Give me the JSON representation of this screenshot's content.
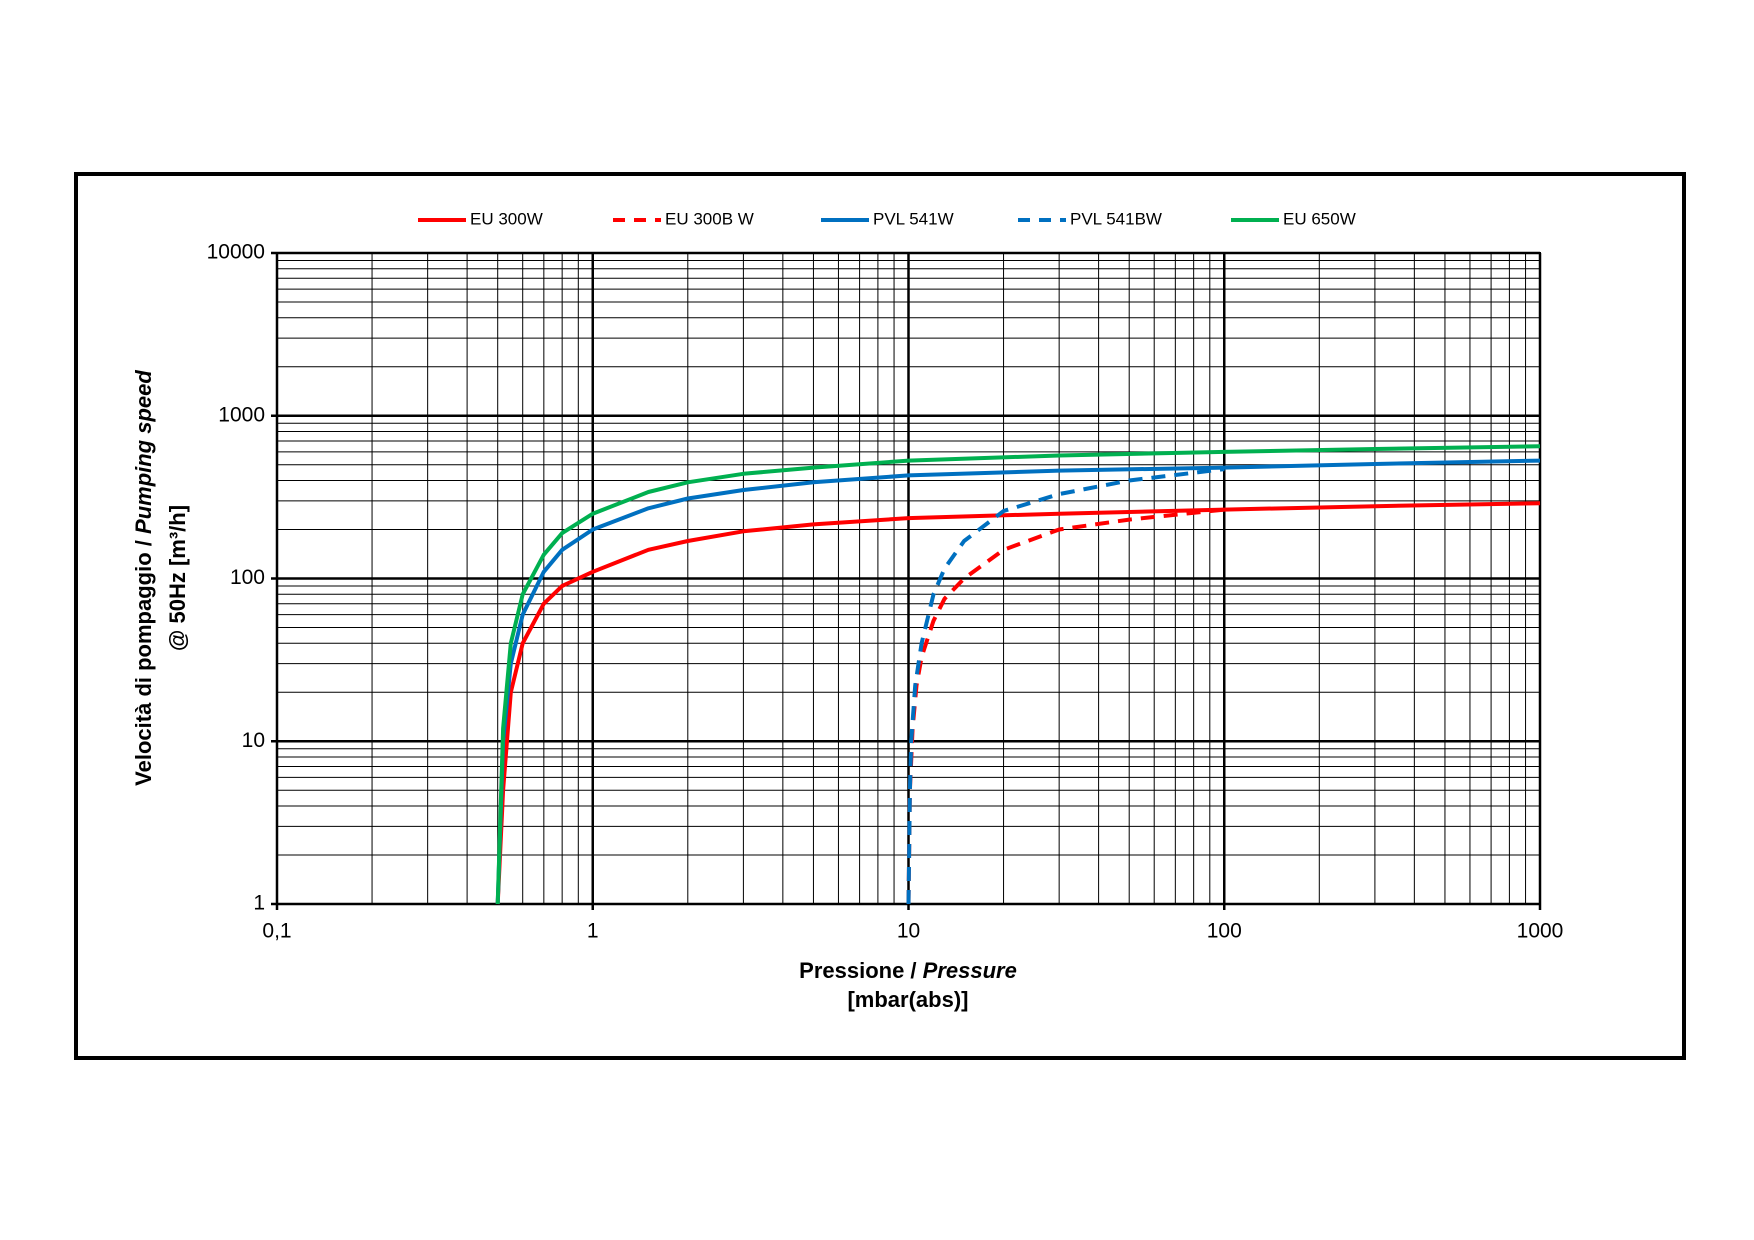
{
  "chart_data": {
    "type": "line",
    "xlabel": {
      "text": "Pressione /",
      "italic": "Pressure",
      "unit": "[mbar(abs)]"
    },
    "ylabel": {
      "text": "Velocità di pompaggio /",
      "italic": "Pumping speed",
      "unit": "@ 50Hz [m³/h]"
    },
    "xscale": "log",
    "yscale": "log",
    "grid": true,
    "minor_grid": true,
    "legend": "top",
    "xlim": [
      0.1,
      1000
    ],
    "ylim": [
      1,
      10000
    ],
    "xticks": [
      {
        "value": 0.1,
        "label": "0,1"
      },
      1,
      10,
      100,
      1000
    ],
    "yticks": [
      1,
      10,
      100,
      1000,
      10000
    ],
    "series": [
      {
        "name": "EU 300W",
        "color": "#ff0000",
        "dash": false,
        "x": [
          0.5,
          0.52,
          0.55,
          0.6,
          0.7,
          0.8,
          1,
          1.5,
          2,
          3,
          5,
          10,
          30,
          100,
          300,
          1000
        ],
        "values": [
          1,
          5,
          20,
          40,
          70,
          90,
          110,
          150,
          170,
          195,
          215,
          235,
          250,
          265,
          278,
          290
        ]
      },
      {
        "name": "EU 300B W",
        "color": "#ff0000",
        "dash": true,
        "x": [
          10,
          10.1,
          10.3,
          10.6,
          11,
          12,
          13,
          15,
          20,
          30,
          50,
          100
        ],
        "values": [
          1,
          5,
          12,
          22,
          33,
          55,
          75,
          100,
          150,
          200,
          230,
          265
        ]
      },
      {
        "name": "PVL 541W",
        "color": "#0070c0",
        "dash": false,
        "x": [
          0.5,
          0.52,
          0.55,
          0.6,
          0.7,
          0.8,
          1,
          1.5,
          2,
          3,
          5,
          10,
          30,
          100,
          300,
          1000
        ],
        "values": [
          1,
          10,
          30,
          60,
          110,
          150,
          200,
          270,
          310,
          350,
          390,
          430,
          460,
          480,
          505,
          530
        ]
      },
      {
        "name": "PVL 541BW",
        "color": "#0070c0",
        "dash": true,
        "x": [
          10,
          10.1,
          10.2,
          10.5,
          11,
          12,
          13,
          15,
          20,
          30,
          50,
          100
        ],
        "values": [
          1,
          5,
          10,
          22,
          40,
          80,
          115,
          170,
          260,
          330,
          400,
          470
        ]
      },
      {
        "name": "EU 650W",
        "color": "#00b050",
        "dash": false,
        "x": [
          0.5,
          0.52,
          0.55,
          0.6,
          0.7,
          0.8,
          1,
          1.5,
          2,
          3,
          5,
          10,
          30,
          100,
          300,
          1000
        ],
        "values": [
          1,
          12,
          40,
          80,
          140,
          190,
          250,
          340,
          390,
          440,
          480,
          530,
          570,
          600,
          625,
          650
        ]
      }
    ]
  }
}
